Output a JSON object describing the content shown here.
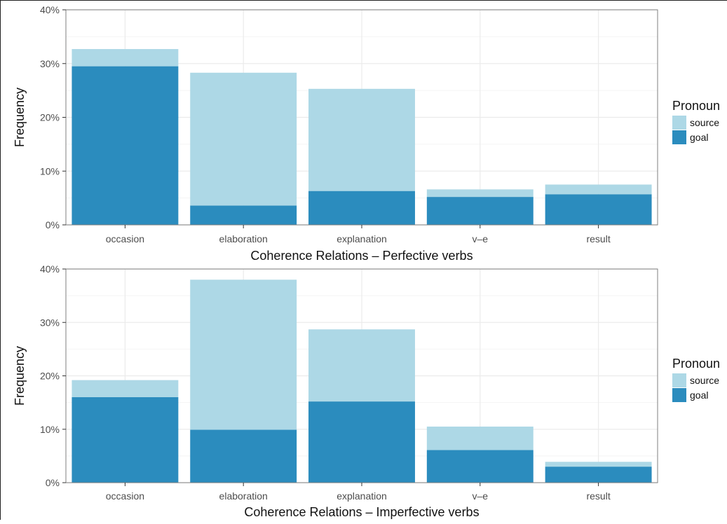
{
  "chart_data": [
    {
      "type": "bar",
      "stacked": true,
      "categories": [
        "occasion",
        "elaboration",
        "explanation",
        "v–e",
        "result"
      ],
      "series": [
        {
          "name": "source",
          "values": [
            3.2,
            24.7,
            19.0,
            1.4,
            1.8
          ],
          "color": "#add8e6"
        },
        {
          "name": "goal",
          "values": [
            29.5,
            3.6,
            6.3,
            5.2,
            5.7
          ],
          "color": "#2b8cbe"
        }
      ],
      "xlabel": "Coherence Relations – Perfective verbs",
      "ylabel": "Frequency",
      "ylim": [
        0,
        40
      ],
      "yticks": [
        "0%",
        "10%",
        "20%",
        "30%",
        "40%"
      ],
      "legend": {
        "title": "Pronoun",
        "position": "right"
      },
      "grid": true
    },
    {
      "type": "bar",
      "stacked": true,
      "categories": [
        "occasion",
        "elaboration",
        "explanation",
        "v–e",
        "result"
      ],
      "series": [
        {
          "name": "source",
          "values": [
            3.2,
            28.1,
            13.5,
            4.4,
            0.9
          ],
          "color": "#add8e6"
        },
        {
          "name": "goal",
          "values": [
            16.0,
            9.9,
            15.2,
            6.1,
            3.0
          ],
          "color": "#2b8cbe"
        }
      ],
      "xlabel": "Coherence Relations – Imperfective verbs",
      "ylabel": "Frequency",
      "ylim": [
        0,
        40
      ],
      "yticks": [
        "0%",
        "10%",
        "20%",
        "30%",
        "40%"
      ],
      "legend": {
        "title": "Pronoun",
        "position": "right"
      },
      "grid": true
    }
  ]
}
